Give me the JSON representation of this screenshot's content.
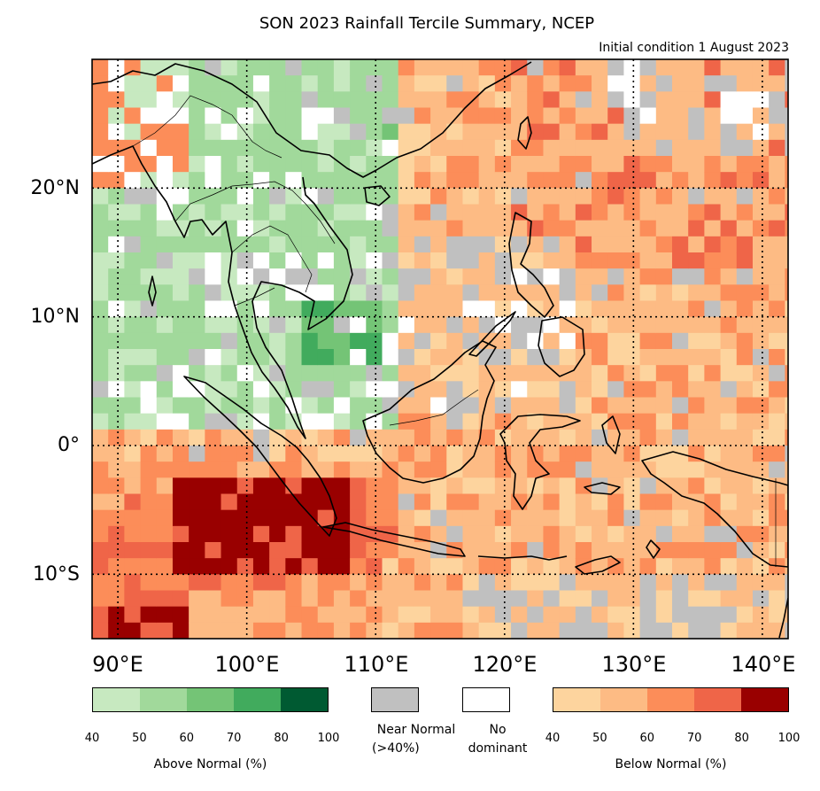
{
  "title": "SON 2023 Rainfall Tercile Summary, NCEP",
  "subtitle": "Initial condition 1 August 2023",
  "lat_labels": [
    "20°N",
    "10°N",
    "0°",
    "10°S"
  ],
  "lon_labels": [
    "90°E",
    "100°E",
    "110°E",
    "120°E",
    "130°E",
    "140°E"
  ],
  "legend": {
    "above": {
      "caption": "Above Normal (%)",
      "ticks": [
        "40",
        "50",
        "60",
        "70",
        "80",
        "100"
      ],
      "colors": [
        "#c7e9c0",
        "#a1d99b",
        "#74c476",
        "#41ab5d",
        "#005a32"
      ]
    },
    "near_normal": {
      "caption_line1": "Near Normal",
      "caption_line2": "(>40%)",
      "color": "#c0c0c0"
    },
    "no_dominant": {
      "caption_line1": "No",
      "caption_line2": "dominant",
      "color": "#ffffff"
    },
    "below": {
      "caption": "Below Normal (%)",
      "ticks": [
        "40",
        "50",
        "60",
        "70",
        "80",
        "100"
      ],
      "colors": [
        "#fdd49e",
        "#fdbb84",
        "#fc8d59",
        "#ef6548",
        "#990000"
      ]
    }
  },
  "map_extent": {
    "lon": [
      88,
      142
    ],
    "lat": [
      -15,
      30
    ]
  }
}
